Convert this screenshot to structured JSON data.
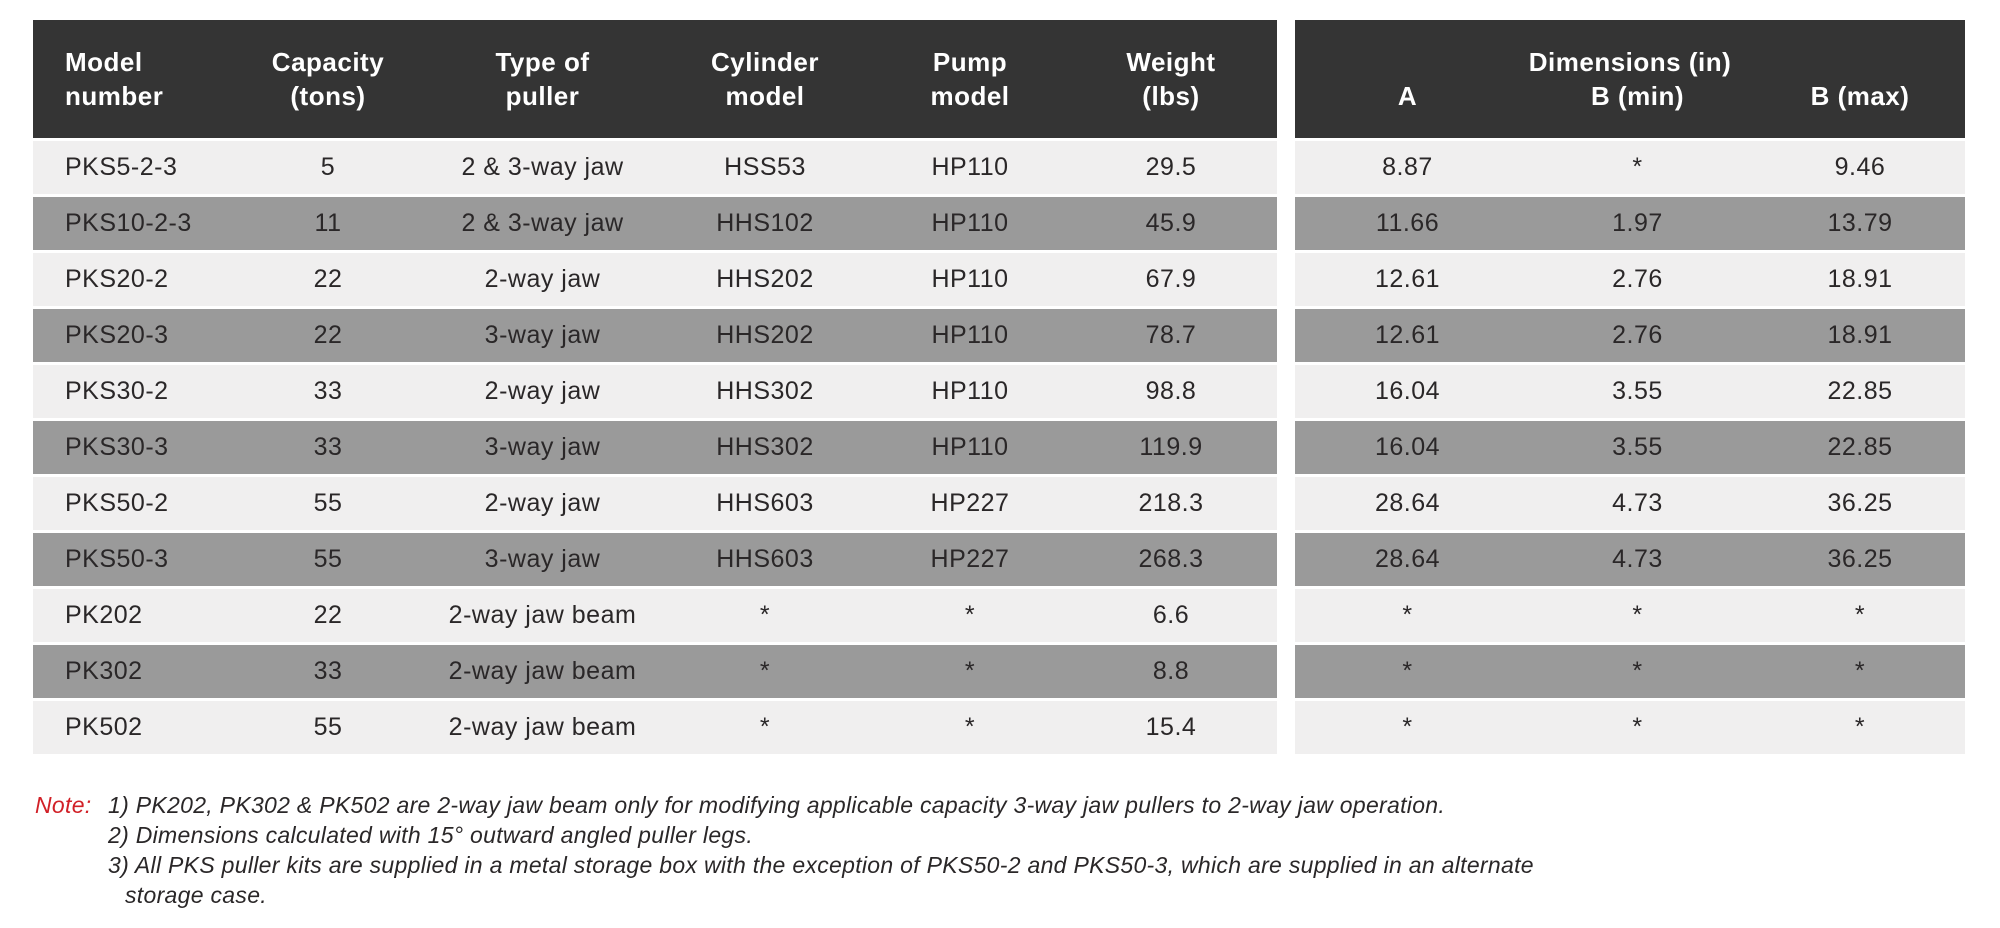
{
  "left_table": {
    "headers": [
      {
        "line1": "Model",
        "line2": "number"
      },
      {
        "line1": "Capacity",
        "line2": "(tons)"
      },
      {
        "line1": "Type of",
        "line2": "puller"
      },
      {
        "line1": "Cylinder",
        "line2": "model"
      },
      {
        "line1": "Pump",
        "line2": "model"
      },
      {
        "line1": "Weight",
        "line2": "(lbs)"
      }
    ],
    "rows": [
      [
        "PKS5-2-3",
        "5",
        "2 & 3-way jaw",
        "HSS53",
        "HP110",
        "29.5"
      ],
      [
        "PKS10-2-3",
        "11",
        "2 & 3-way jaw",
        "HHS102",
        "HP110",
        "45.9"
      ],
      [
        "PKS20-2",
        "22",
        "2-way jaw",
        "HHS202",
        "HP110",
        "67.9"
      ],
      [
        "PKS20-3",
        "22",
        "3-way jaw",
        "HHS202",
        "HP110",
        "78.7"
      ],
      [
        "PKS30-2",
        "33",
        "2-way jaw",
        "HHS302",
        "HP110",
        "98.8"
      ],
      [
        "PKS30-3",
        "33",
        "3-way jaw",
        "HHS302",
        "HP110",
        "119.9"
      ],
      [
        "PKS50-2",
        "55",
        "2-way jaw",
        "HHS603",
        "HP227",
        "218.3"
      ],
      [
        "PKS50-3",
        "55",
        "3-way jaw",
        "HHS603",
        "HP227",
        "268.3"
      ],
      [
        "PK202",
        "22",
        "2-way jaw beam",
        "*",
        "*",
        "6.6"
      ],
      [
        "PK302",
        "33",
        "2-way jaw beam",
        "*",
        "*",
        "8.8"
      ],
      [
        "PK502",
        "55",
        "2-way jaw beam",
        "*",
        "*",
        "15.4"
      ]
    ]
  },
  "right_table": {
    "group_header": "Dimensions (in)",
    "headers": [
      "A",
      "B (min)",
      "B (max)"
    ],
    "rows": [
      [
        "8.87",
        "*",
        "9.46"
      ],
      [
        "11.66",
        "1.97",
        "13.79"
      ],
      [
        "12.61",
        "2.76",
        "18.91"
      ],
      [
        "12.61",
        "2.76",
        "18.91"
      ],
      [
        "16.04",
        "3.55",
        "22.85"
      ],
      [
        "16.04",
        "3.55",
        "22.85"
      ],
      [
        "28.64",
        "4.73",
        "36.25"
      ],
      [
        "28.64",
        "4.73",
        "36.25"
      ],
      [
        "*",
        "*",
        "*"
      ],
      [
        "*",
        "*",
        "*"
      ],
      [
        "*",
        "*",
        "*"
      ]
    ]
  },
  "notes": {
    "label": "Note:",
    "items": [
      "1) PK202, PK302 & PK502 are 2-way jaw beam only for modifying applicable capacity 3-way jaw pullers to 2-way jaw operation.",
      "2) Dimensions calculated with 15° outward angled puller legs.",
      "3) All PKS puller kits are supplied in a metal storage box with the exception of PKS50-2 and PKS50-3, which are supplied in an alternate\nstorage case."
    ]
  },
  "colors": {
    "header_bg": "#343434",
    "row_light": "#f0efef",
    "row_dark": "#9a9a9a",
    "note_red": "#d12027",
    "text": "#2a2728"
  }
}
